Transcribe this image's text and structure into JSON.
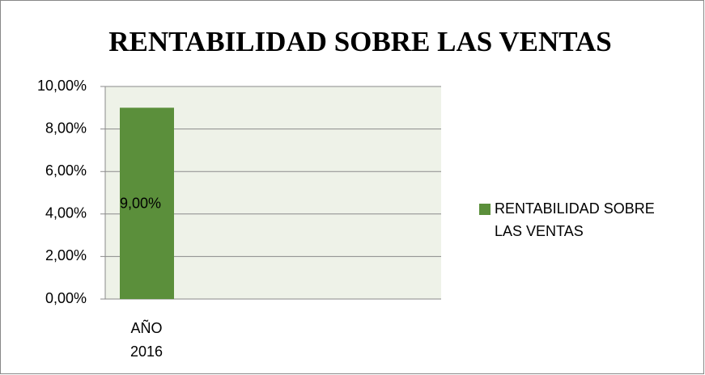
{
  "chart_data": {
    "type": "bar",
    "title": "RENTABILIDAD SOBRE LAS VENTAS",
    "categories": [
      "AÑO 2016"
    ],
    "series": [
      {
        "name": "RENTABILIDAD SOBRE LAS VENTAS",
        "color": "#5b8f3b",
        "values": [
          9
        ],
        "value_labels": [
          "9,00%"
        ]
      }
    ],
    "ylim": [
      0,
      10
    ],
    "yticks": [
      {
        "value": 0,
        "label": "0,00%"
      },
      {
        "value": 2,
        "label": "2,00%"
      },
      {
        "value": 4,
        "label": "4,00%"
      },
      {
        "value": 6,
        "label": "6,00%"
      },
      {
        "value": 8,
        "label": "8,00%"
      },
      {
        "value": 10,
        "label": "10,00%"
      }
    ],
    "grid": true,
    "legend": "right"
  }
}
